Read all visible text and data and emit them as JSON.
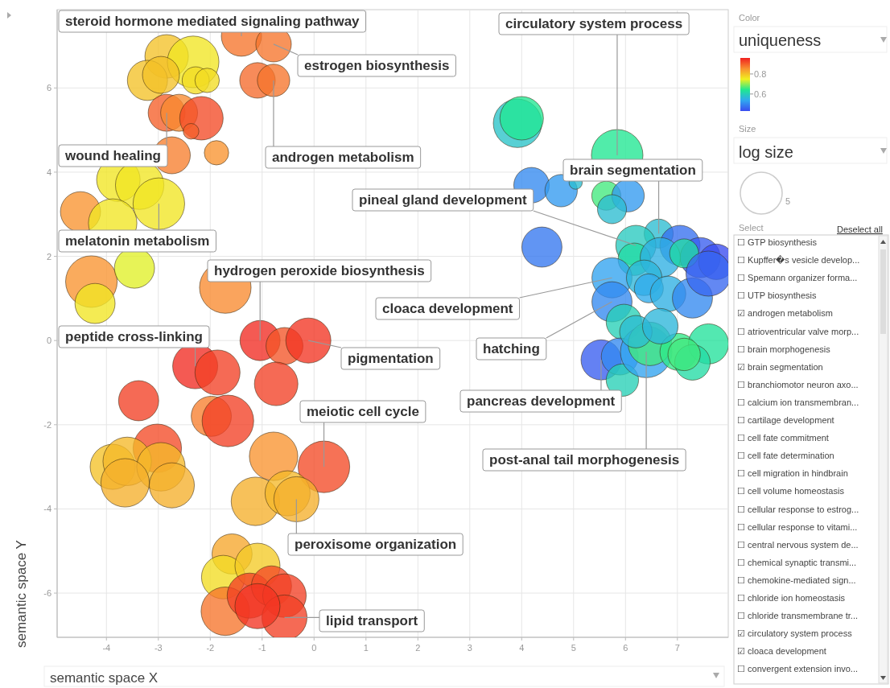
{
  "chart_data": {
    "type": "bubble",
    "xlabel": "semantic space X",
    "ylabel": "semantic space Y",
    "clabel": "uniqueness",
    "legend_title": "log size",
    "xlim": [
      -4.95,
      7.98
    ],
    "ylim": [
      -7.05,
      7.86
    ],
    "xticks": [
      -4,
      -3,
      -2,
      -1,
      0,
      1,
      2,
      3,
      4,
      5,
      6,
      7
    ],
    "yticks": [
      -6,
      -4,
      -2,
      0,
      2,
      4,
      6
    ],
    "grid": true,
    "clim": [
      0.43,
      0.96
    ],
    "cticks": [
      0.6,
      0.8
    ],
    "size_legend": [
      5
    ],
    "x": [
      -1.4,
      -0.78,
      -1.09,
      -0.78,
      -2.84,
      -2.33,
      -3.21,
      -2.95,
      -2.28,
      -2.06,
      -2.84,
      -2.6,
      -2.17,
      -2.37,
      -2.74,
      -1.88,
      -3.77,
      -3.36,
      -2.99,
      -4.5,
      -3.88,
      -4.29,
      -3.46,
      -4.22,
      -1.71,
      -1.04,
      -0.57,
      -0.11,
      -0.73,
      -2.29,
      -1.86,
      -3.38,
      -1.98,
      -1.66,
      -3.02,
      -3.88,
      -3.6,
      -2.95,
      -3.64,
      -2.74,
      -0.78,
      0.19,
      -1.13,
      -0.51,
      -0.34,
      -1.58,
      -1.75,
      -1.09,
      -1.71,
      -1.24,
      -0.82,
      -0.57,
      -0.57,
      -1.09,
      3.92,
      4.0,
      5.84,
      4.19,
      4.76,
      5.04,
      5.63,
      6.05,
      5.74,
      4.39,
      6.64,
      6.2,
      7.05,
      7.44,
      7.75,
      6.17,
      6.67,
      7.13,
      5.74,
      6.36,
      5.74,
      6.45,
      6.82,
      7.29,
      7.6,
      5.97,
      5.53,
      5.89,
      5.94,
      6.4,
      6.47,
      7.02,
      7.6,
      7.29,
      7.13,
      6.2,
      6.67
    ],
    "values": [
      7.23,
      7.04,
      6.18,
      6.18,
      6.75,
      6.62,
      6.18,
      6.31,
      6.18,
      6.18,
      5.41,
      5.41,
      5.28,
      4.97,
      4.4,
      4.46,
      3.82,
      3.69,
      3.25,
      3.06,
      2.79,
      1.4,
      1.72,
      0.88,
      1.26,
      0,
      -0.13,
      0,
      -1.03,
      -0.61,
      -0.76,
      -1.43,
      -1.8,
      -1.91,
      -2.56,
      -3.0,
      -2.87,
      -3.0,
      -3.38,
      -3.44,
      -2.75,
      -3.0,
      -3.82,
      -3.63,
      -3.77,
      -5.07,
      -5.62,
      -5.35,
      -6.43,
      -6.06,
      -5.83,
      -6.06,
      -6.58,
      -6.31,
      5.16,
      5.28,
      4.4,
      3.69,
      3.56,
      3.75,
      3.44,
      3.44,
      3.12,
      2.22,
      2.54,
      2.26,
      2.26,
      1.97,
      1.87,
      1.93,
      1.97,
      2.07,
      1.49,
      1.49,
      0.92,
      1.24,
      1.11,
      1.01,
      1.59,
      0.44,
      -0.46,
      -0.38,
      -0.94,
      -0.27,
      -0.08,
      -0.27,
      -0.08,
      -0.52,
      -0.33,
      0.21,
      0.34
    ],
    "sizes": [
      4.6,
      3.6,
      3.6,
      3.0,
      5.4,
      7.6,
      4.6,
      3.9,
      2.1,
      1.7,
      3.9,
      3.9,
      5.4,
      0.7,
      3.9,
      1.7,
      5.4,
      6.7,
      7.6,
      4.6,
      6.7,
      7.6,
      4.6,
      4.6,
      7.6,
      4.6,
      3.9,
      5.8,
      5.4,
      5.8,
      5.8,
      4.6,
      4.6,
      7.6,
      6.7,
      5.8,
      6.7,
      6.7,
      6.7,
      5.8,
      6.7,
      7.6,
      6.7,
      5.8,
      5.8,
      4.6,
      5.4,
      5.8,
      6.7,
      5.8,
      4.6,
      5.4,
      5.8,
      5.8,
      6.7,
      5.4,
      7.6,
      3.6,
      3.0,
      0.5,
      2.4,
      3.0,
      2.4,
      4.6,
      2.4,
      4.6,
      4.6,
      4.6,
      3.6,
      3.0,
      4.6,
      2.4,
      4.6,
      3.6,
      4.6,
      2.4,
      3.6,
      4.6,
      5.8,
      3.6,
      4.6,
      3.9,
      3.0,
      7.6,
      5.4,
      3.9,
      4.6,
      3.6,
      3.0,
      3.0,
      3.6
    ],
    "cvalues": [
      0.88,
      0.88,
      0.89,
      0.88,
      0.8,
      0.76,
      0.8,
      0.8,
      0.77,
      0.77,
      0.9,
      0.86,
      0.92,
      0.9,
      0.87,
      0.85,
      0.76,
      0.76,
      0.76,
      0.85,
      0.76,
      0.85,
      0.74,
      0.76,
      0.86,
      0.95,
      0.91,
      0.94,
      0.93,
      0.95,
      0.93,
      0.93,
      0.87,
      0.93,
      0.92,
      0.8,
      0.81,
      0.81,
      0.82,
      0.82,
      0.85,
      0.92,
      0.82,
      0.81,
      0.82,
      0.83,
      0.77,
      0.79,
      0.88,
      0.93,
      0.92,
      0.93,
      0.93,
      0.94,
      0.58,
      0.64,
      0.64,
      0.5,
      0.52,
      0.57,
      0.66,
      0.52,
      0.57,
      0.48,
      0.57,
      0.59,
      0.47,
      0.45,
      0.43,
      0.62,
      0.55,
      0.62,
      0.53,
      0.56,
      0.5,
      0.54,
      0.55,
      0.5,
      0.46,
      0.6,
      0.45,
      0.5,
      0.6,
      0.53,
      0.66,
      0.65,
      0.63,
      0.62,
      0.66,
      0.57,
      0.56
    ],
    "annotations": [
      {
        "text": "steroid hormone mediated signaling pathway",
        "x": -1.4,
        "y": 7.23
      },
      {
        "text": "estrogen biosynthesis",
        "x": -0.78,
        "y": 7.04
      },
      {
        "text": "androgen metabolism",
        "x": -0.78,
        "y": 6.18
      },
      {
        "text": "wound healing",
        "x": -2.84,
        "y": 5.41
      },
      {
        "text": "melatonin metabolism",
        "x": -2.99,
        "y": 3.25
      },
      {
        "text": "hydrogen peroxide biosynthesis",
        "x": -1.04,
        "y": 0
      },
      {
        "text": "peptide cross-linking",
        "x": -2.29,
        "y": -0.61
      },
      {
        "text": "pigmentation",
        "x": -0.11,
        "y": 0
      },
      {
        "text": "meiotic cell cycle",
        "x": 0.19,
        "y": -3.0
      },
      {
        "text": "peroxisome organization",
        "x": -0.34,
        "y": -3.77
      },
      {
        "text": "lipid transport",
        "x": -0.57,
        "y": -6.58
      },
      {
        "text": "circulatory system process",
        "x": 5.84,
        "y": 4.4
      },
      {
        "text": "brain segmentation",
        "x": 6.64,
        "y": 2.54
      },
      {
        "text": "pineal gland development",
        "x": 6.2,
        "y": 2.26
      },
      {
        "text": "cloaca development",
        "x": 5.74,
        "y": 1.49
      },
      {
        "text": "hatching",
        "x": 5.74,
        "y": 0.92
      },
      {
        "text": "pancreas development",
        "x": 5.53,
        "y": -0.46
      },
      {
        "text": "post-anal tail morphogenesis",
        "x": 6.4,
        "y": -0.27
      },
      "Color",
      "Size",
      "Select",
      "Deselect all",
      "☐ GTP biosynthesis",
      "☐ Kupffer�s vesicle develop...",
      "☐ Spemann organizer forma...",
      "☐ UTP biosynthesis",
      "☑ androgen metabolism",
      "☐ atrioventricular valve morp...",
      "☐ brain morphogenesis",
      "☑ brain segmentation",
      "☐ branchiomotor neuron axo...",
      "☐ calcium ion transmembran...",
      "☐ cartilage development",
      "☐ cell fate commitment",
      "☐ cell fate determination",
      "☐ cell migration in hindbrain",
      "☐ cell volume homeostasis",
      "☐ cellular response to estrog...",
      "☐ cellular response to vitami...",
      "☐ central nervous system de...",
      "☐ chemical synaptic transmi...",
      "☐ chemokine-mediated sign...",
      "☐ chloride ion homeostasis",
      "☐ chloride transmembrane tr...",
      "☑ circulatory system process",
      "☑ cloaca development",
      "☐ convergent extension invo..."
    ]
  }
}
